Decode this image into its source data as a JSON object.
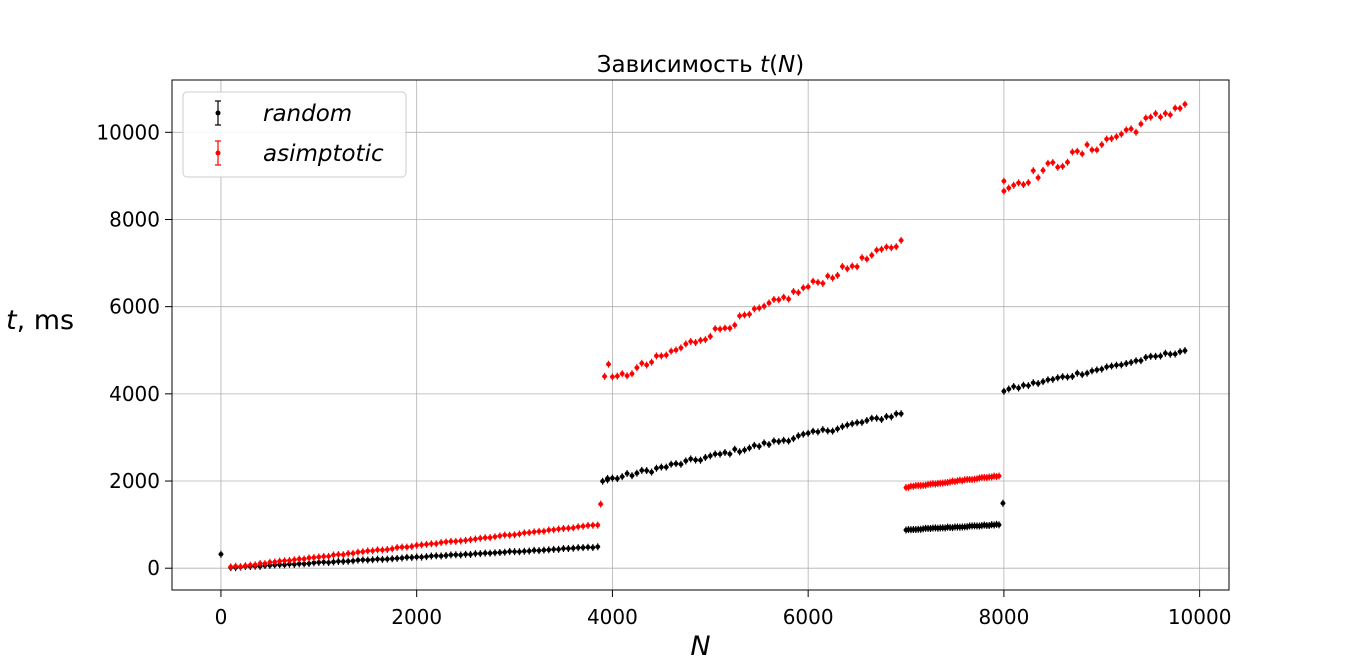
{
  "chart_data": {
    "type": "scatter",
    "title": "Зависимость t(N)",
    "xlabel": "N",
    "ylabel": "t, ms",
    "xlim": [
      -500,
      10300
    ],
    "ylim": [
      -500,
      11200
    ],
    "xticks": [
      0,
      2000,
      4000,
      6000,
      8000,
      10000
    ],
    "yticks": [
      0,
      2000,
      4000,
      6000,
      8000,
      10000
    ],
    "grid": true,
    "legend_position": "top-left",
    "series": [
      {
        "name": "random",
        "color": "#000000",
        "marker": "errorbar-point",
        "segments": [
          {
            "x_start": 100,
            "x_end": 3850,
            "step": 50,
            "y_start": 10,
            "y_end": 490,
            "noise": 10
          },
          {
            "x_start": 3900,
            "x_end": 6950,
            "step": 50,
            "y_start": 2000,
            "y_end": 3550,
            "noise": 50
          },
          {
            "x_start": 7000,
            "x_end": 7950,
            "step": 25,
            "y_start": 880,
            "y_end": 1000,
            "noise": 10
          },
          {
            "x_start": 8000,
            "x_end": 9850,
            "step": 50,
            "y_start": 4080,
            "y_end": 5000,
            "noise": 40
          }
        ],
        "extra_points": [
          {
            "x": 0,
            "y": 320
          },
          {
            "x": 7990,
            "y": 1490
          },
          {
            "x": 3950,
            "y": 2060
          }
        ]
      },
      {
        "name": "asimptotic",
        "color": "#ff0000",
        "marker": "errorbar-point",
        "segments": [
          {
            "x_start": 100,
            "x_end": 3850,
            "step": 50,
            "y_start": 20,
            "y_end": 1000,
            "noise": 12
          },
          {
            "x_start": 4000,
            "x_end": 6950,
            "step": 50,
            "y_start": 4300,
            "y_end": 7480,
            "noise": 90
          },
          {
            "x_start": 7000,
            "x_end": 7950,
            "step": 25,
            "y_start": 1860,
            "y_end": 2120,
            "noise": 12
          },
          {
            "x_start": 8000,
            "x_end": 9850,
            "step": 50,
            "y_start": 8700,
            "y_end": 10650,
            "noise": 130
          }
        ],
        "extra_points": [
          {
            "x": 3880,
            "y": 1470
          },
          {
            "x": 3920,
            "y": 4400
          },
          {
            "x": 3960,
            "y": 4680
          },
          {
            "x": 8000,
            "y": 8880
          }
        ]
      }
    ]
  }
}
